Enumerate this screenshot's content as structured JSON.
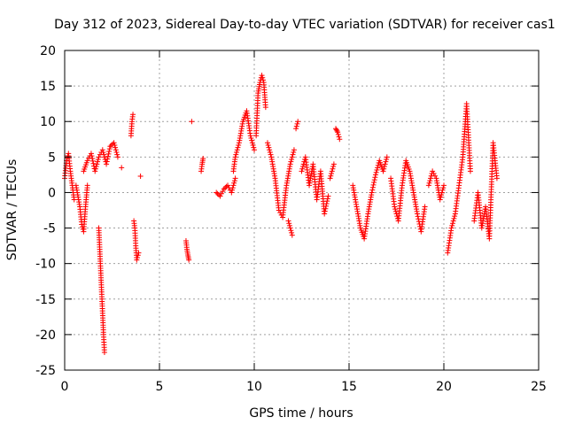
{
  "chart_data": {
    "type": "scatter",
    "title": "Day 312 of 2023, Sidereal Day-to-day VTEC variation (SDTVAR) for receiver cas1",
    "xlabel": "GPS time / hours",
    "ylabel": "SDTVAR / TECUs",
    "xlim": [
      0,
      25
    ],
    "ylim": [
      -25,
      20
    ],
    "xticks": [
      0,
      5,
      10,
      15,
      20,
      25
    ],
    "yticks": [
      -25,
      -20,
      -15,
      -10,
      -5,
      0,
      5,
      10,
      15,
      20
    ],
    "grid": true,
    "marker": "+",
    "color": "#ff0000",
    "series": [
      {
        "name": "SDTVAR",
        "segments": [
          {
            "x": [
              0.0,
              0.1,
              0.2,
              0.3,
              0.4,
              0.5
            ],
            "y": [
              2,
              4.5,
              5.5,
              3,
              1,
              -1
            ]
          },
          {
            "x": [
              0.6,
              0.8,
              0.9,
              1.0,
              1.1,
              1.2
            ],
            "y": [
              1,
              -2,
              -4.5,
              -5.5,
              -2,
              1
            ]
          },
          {
            "x": [
              1.0,
              1.2,
              1.4,
              1.6,
              1.8,
              2.0,
              2.2,
              2.4,
              2.6,
              2.8
            ],
            "y": [
              3,
              4.5,
              5.5,
              3,
              5,
              6,
              4,
              6.5,
              7,
              5
            ]
          },
          {
            "x": [
              1.8,
              1.85,
              1.9,
              1.95,
              2.0,
              2.05,
              2.1
            ],
            "y": [
              -5,
              -8,
              -11,
              -14,
              -17,
              -20,
              -22.5
            ]
          },
          {
            "x": [
              3.0
            ],
            "y": [
              3.5
            ]
          },
          {
            "x": [
              3.5,
              3.55,
              3.6
            ],
            "y": [
              8,
              10,
              11
            ]
          },
          {
            "x": [
              3.65,
              3.7,
              3.75,
              3.8,
              3.9
            ],
            "y": [
              -4,
              -5,
              -7.5,
              -9.5,
              -8.5
            ]
          },
          {
            "x": [
              4.0
            ],
            "y": [
              2.3
            ]
          },
          {
            "x": [
              6.4,
              6.45,
              6.5,
              6.55
            ],
            "y": [
              -6.8,
              -8,
              -8.8,
              -9.5
            ]
          },
          {
            "x": [
              6.7
            ],
            "y": [
              10
            ]
          },
          {
            "x": [
              7.2,
              7.25,
              7.3
            ],
            "y": [
              3,
              4,
              4.8
            ]
          },
          {
            "x": [
              8.0,
              8.2,
              8.4,
              8.6,
              8.8,
              9.0
            ],
            "y": [
              0,
              -0.5,
              0.5,
              1,
              0,
              2
            ]
          },
          {
            "x": [
              8.9,
              9.0,
              9.2,
              9.4,
              9.6,
              9.8,
              10.0
            ],
            "y": [
              3,
              5,
              7,
              10,
              11.5,
              8,
              6
            ]
          },
          {
            "x": [
              10.1,
              10.2,
              10.3,
              10.4,
              10.5,
              10.6
            ],
            "y": [
              8,
              14,
              15.5,
              16.5,
              15.5,
              12
            ]
          },
          {
            "x": [
              10.7,
              10.9,
              11.1,
              11.3,
              11.5,
              11.7,
              11.9,
              12.1
            ],
            "y": [
              7,
              5,
              2,
              -2.5,
              -3.5,
              1,
              4,
              6
            ]
          },
          {
            "x": [
              11.8,
              11.9,
              12.0
            ],
            "y": [
              -4,
              -5,
              -6
            ]
          },
          {
            "x": [
              12.2,
              12.3
            ],
            "y": [
              9,
              10
            ]
          },
          {
            "x": [
              12.5,
              12.7,
              12.9,
              13.1,
              13.3,
              13.5,
              13.7,
              13.9
            ],
            "y": [
              3,
              5,
              1,
              4,
              -1,
              3,
              -3,
              -0.5
            ]
          },
          {
            "x": [
              14.0,
              14.2
            ],
            "y": [
              2,
              4
            ]
          },
          {
            "x": [
              14.3,
              14.4,
              14.5
            ],
            "y": [
              9,
              8.5,
              7.5
            ]
          },
          {
            "x": [
              15.2,
              15.4,
              15.6,
              15.8,
              16.0,
              16.2,
              16.4,
              16.6,
              16.8,
              17.0
            ],
            "y": [
              1,
              -2,
              -5,
              -6.5,
              -3,
              0,
              2.5,
              4.5,
              3,
              5
            ]
          },
          {
            "x": [
              17.2,
              17.4,
              17.6,
              17.8,
              18.0,
              18.2,
              18.4,
              18.6,
              18.8,
              19.0
            ],
            "y": [
              2,
              -2,
              -4,
              1,
              4.5,
              3,
              0,
              -3,
              -5.5,
              -2
            ]
          },
          {
            "x": [
              19.2,
              19.4,
              19.6,
              19.8,
              20.0
            ],
            "y": [
              1,
              3,
              2,
              -1,
              1
            ]
          },
          {
            "x": [
              20.2,
              20.4,
              20.6,
              20.8,
              21.0,
              21.2,
              21.4
            ],
            "y": [
              -8.5,
              -5,
              -3,
              1,
              5,
              12.5,
              3
            ]
          },
          {
            "x": [
              21.6,
              21.8,
              22.0,
              22.2,
              22.4,
              22.6,
              22.8
            ],
            "y": [
              -4,
              0,
              -5,
              -2,
              -6.5,
              7,
              2
            ]
          }
        ]
      }
    ]
  }
}
